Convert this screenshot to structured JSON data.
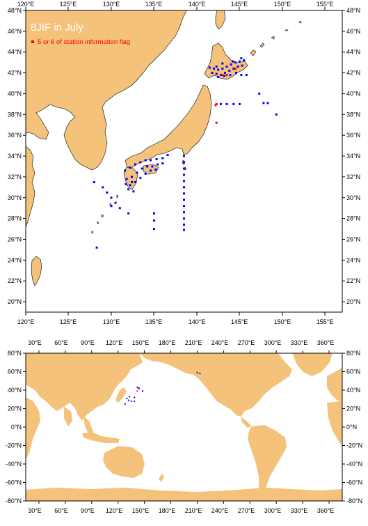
{
  "top_map": {
    "title": "8JIF in July",
    "legend_label": "5 or 6 of station information flag",
    "lon_labels": [
      "120°E",
      "125°E",
      "130°E",
      "135°E",
      "140°E",
      "145°E",
      "150°E",
      "155°E"
    ],
    "lat_labels": [
      "20°N",
      "22°N",
      "24°N",
      "26°N",
      "28°N",
      "30°N",
      "32°N",
      "34°N",
      "36°N",
      "38°N",
      "40°N",
      "42°N",
      "44°N",
      "46°N",
      "48°N"
    ],
    "colors": {
      "land": "#f4c27a",
      "station": "#0000ff",
      "flagged": "#ff0000",
      "title_text": "#ffffff"
    }
  },
  "bottom_map": {
    "lon_labels": [
      "30°E",
      "60°E",
      "90°E",
      "120°E",
      "150°E",
      "180°E",
      "210°E",
      "240°E",
      "270°E",
      "300°E",
      "330°E",
      "360°E"
    ],
    "lat_labels": [
      "80°N",
      "60°N",
      "40°N",
      "20°N",
      "0°N",
      "-20°N",
      "-40°N",
      "-60°N",
      "-80°N"
    ],
    "colors": {
      "land": "#f4c27a",
      "station": "#0000ff",
      "flagged": "#ff0000"
    }
  },
  "chart_data": [
    {
      "type": "scatter",
      "title": "8JIF in July",
      "xlim": [
        120,
        157
      ],
      "ylim": [
        19,
        48
      ],
      "series": [
        {
          "name": "",
          "color": "#0000ff",
          "points": [
            [
              128.0,
              31.5
            ],
            [
              129.0,
              31.0
            ],
            [
              129.5,
              30.5
            ],
            [
              130.0,
              30.0
            ],
            [
              130.5,
              29.5
            ],
            [
              131.0,
              29.0
            ],
            [
              132.0,
              28.5
            ],
            [
              130.0,
              29.2
            ],
            [
              128.3,
              25.2
            ],
            [
              135.0,
              28.5
            ],
            [
              135.0,
              27.8
            ],
            [
              135.0,
              27.0
            ],
            [
              138.5,
              34.0
            ],
            [
              138.5,
              33.4
            ],
            [
              138.5,
              32.8
            ],
            [
              138.5,
              32.2
            ],
            [
              138.5,
              31.6
            ],
            [
              138.5,
              31.0
            ],
            [
              138.5,
              30.4
            ],
            [
              138.5,
              29.8
            ],
            [
              138.5,
              29.2
            ],
            [
              138.5,
              28.6
            ],
            [
              138.5,
              28.0
            ],
            [
              138.5,
              27.4
            ],
            [
              138.5,
              26.9
            ],
            [
              131.6,
              32.6
            ],
            [
              132.2,
              32.9
            ],
            [
              132.8,
              33.2
            ],
            [
              133.4,
              33.4
            ],
            [
              134.0,
              33.6
            ],
            [
              134.6,
              33.6
            ],
            [
              135.3,
              33.7
            ],
            [
              136.0,
              33.8
            ],
            [
              136.6,
              34.1
            ],
            [
              131.8,
              31.8
            ],
            [
              132.4,
              32.0
            ],
            [
              133.0,
              32.4
            ],
            [
              133.6,
              32.8
            ],
            [
              134.2,
              33.0
            ],
            [
              134.8,
              33.0
            ],
            [
              135.4,
              33.2
            ],
            [
              136.0,
              33.3
            ],
            [
              132.2,
              31.2
            ],
            [
              132.8,
              31.5
            ],
            [
              133.4,
              31.9
            ],
            [
              134.0,
              32.3
            ],
            [
              134.6,
              32.6
            ],
            [
              135.2,
              32.7
            ],
            [
              132.0,
              30.8
            ],
            [
              132.4,
              31.5
            ],
            [
              131.7,
              31.3
            ],
            [
              132.6,
              30.6
            ],
            [
              142.8,
              39.0
            ],
            [
              143.5,
              39.0
            ],
            [
              144.3,
              39.0
            ],
            [
              145.0,
              39.0
            ],
            [
              147.3,
              40.0
            ],
            [
              147.8,
              39.1
            ],
            [
              148.3,
              39.1
            ],
            [
              149.3,
              38.0
            ],
            [
              141.5,
              42.5
            ],
            [
              142.0,
              42.4
            ],
            [
              142.5,
              42.3
            ],
            [
              143.0,
              42.4
            ],
            [
              143.5,
              42.6
            ],
            [
              144.0,
              42.8
            ],
            [
              144.5,
              43.0
            ],
            [
              145.0,
              43.1
            ],
            [
              145.5,
              43.2
            ],
            [
              141.8,
              42.0
            ],
            [
              142.3,
              41.9
            ],
            [
              142.8,
              41.8
            ],
            [
              143.3,
              42.0
            ],
            [
              143.8,
              42.2
            ],
            [
              144.3,
              42.4
            ],
            [
              144.8,
              42.6
            ],
            [
              145.3,
              42.7
            ],
            [
              142.5,
              41.6
            ],
            [
              143.2,
              41.7
            ],
            [
              143.9,
              41.8
            ],
            [
              144.6,
              42.0
            ],
            [
              145.2,
              41.8
            ],
            [
              145.8,
              41.8
            ],
            [
              142.3,
              42.6
            ],
            [
              143.0,
              42.9
            ],
            [
              144.2,
              43.1
            ],
            [
              145.2,
              43.4
            ]
          ]
        },
        {
          "name": "5 or 6 of station information flag",
          "color": "#ff0000",
          "points": [
            [
              142.3,
              39.0
            ],
            [
              142.3,
              37.2
            ],
            [
              142.2,
              38.9
            ],
            [
              143.0,
              41.8
            ],
            [
              143.5,
              41.8
            ],
            [
              144.5,
              42.4
            ]
          ]
        }
      ]
    },
    {
      "type": "scatter",
      "title": "",
      "xlim": [
        15,
        375
      ],
      "ylim": [
        -80,
        80
      ],
      "series": [
        {
          "name": "",
          "color": "#0000ff",
          "points": [
            [
              130,
              31
            ],
            [
              132,
              29
            ],
            [
              128,
              25
            ],
            [
              135,
              28
            ],
            [
              138.5,
              32
            ],
            [
              138.5,
              28
            ],
            [
              133,
              33
            ],
            [
              142,
              43
            ],
            [
              144,
              42
            ],
            [
              148,
              39
            ],
            [
              210,
              59
            ],
            [
              213,
              58
            ]
          ]
        },
        {
          "name": "",
          "color": "#ff0000",
          "points": [
            [
              142,
              39
            ],
            [
              143,
              42
            ]
          ]
        }
      ]
    }
  ]
}
